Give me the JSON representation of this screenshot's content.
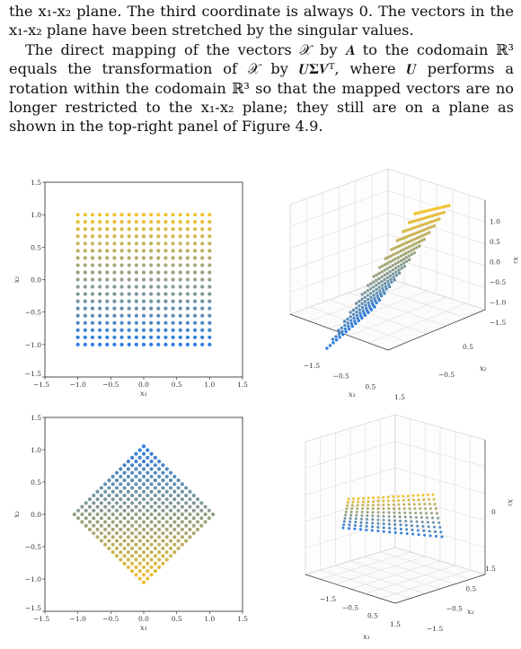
{
  "paragraphs": [
    "the x₁-x₂ plane. The third coordinate is always 0. The vectors in the x₁-x₂ plane have been stretched by the singular values.",
    "The direct mapping of the vectors 𝒳 by 𝑨 to the codomain ℝ³ equals the transformation of 𝒳 by 𝑼𝚺𝑽ᵀ, where 𝑼 performs a rotation within the codomain ℝ³ so that the mapped vectors are no longer restricted to the x₁-x₂ plane; they still are on a plane as shown in the top-right panel of Figure 4.9."
  ],
  "colors": {
    "top": "#f2c230",
    "bottom": "#2f7de0"
  },
  "chart_data": [
    {
      "type": "scatter",
      "panel": "top-left",
      "description": "uniform 19x19 grid over the square [-1,1]x[-1,1], color gradient by x2",
      "grid_n": 19,
      "x_range": [
        -1,
        1
      ],
      "y_range": [
        -1,
        1
      ],
      "xlabel": "x₁",
      "ylabel": "x₂",
      "xlim": [
        -1.5,
        1.5
      ],
      "ylim": [
        -1.5,
        1.5
      ],
      "xticks": [
        "-1.5",
        "-1.0",
        "-0.5",
        "0.0",
        "0.5",
        "1.0",
        "1.5"
      ],
      "yticks": [
        "-1.5",
        "-1.0",
        "-0.5",
        "0.0",
        "0.5",
        "1.0",
        "1.5"
      ]
    },
    {
      "type": "scatter",
      "panel": "bottom-left",
      "description": "grid rotated by 45 degrees (diamond), color gradient by original x2",
      "rotation_deg": 45,
      "xlabel": "x₁",
      "ylabel": "x₂",
      "xlim": [
        -1.5,
        1.5
      ],
      "ylim": [
        -1.5,
        1.5
      ],
      "xticks": [
        "-1.5",
        "-1.0",
        "-0.5",
        "0.0",
        "0.5",
        "1.0",
        "1.5"
      ],
      "yticks": [
        "-1.5",
        "-1.0",
        "-0.5",
        "0.0",
        "0.5",
        "1.0",
        "1.5"
      ]
    },
    {
      "type": "scatter",
      "panel": "top-right",
      "description": "3D view of mapped vectors on a tilted plane",
      "xlabel": "x₁",
      "ylabel": "x₂",
      "zlabel": "x₃",
      "xticks": [
        "-1.5",
        "-0.5",
        "0.5",
        "1.5"
      ],
      "yticks": [
        "-0.5",
        "0.5"
      ],
      "zticks": [
        "-1.5",
        "-1.0",
        "-0.5",
        "0.0",
        "0.5",
        "1.0"
      ]
    },
    {
      "type": "scatter",
      "panel": "bottom-right",
      "description": "3D view of vectors lying in the x1-x2 plane",
      "xlabel": "x₁",
      "ylabel": "x₂",
      "zlabel": "x₃",
      "xticks": [
        "-1.5",
        "-0.5",
        "0.5",
        "1.5"
      ],
      "yticks": [
        "-1.5",
        "-0.5",
        "0.5",
        "1.5"
      ],
      "zticks": [
        "0"
      ]
    }
  ]
}
